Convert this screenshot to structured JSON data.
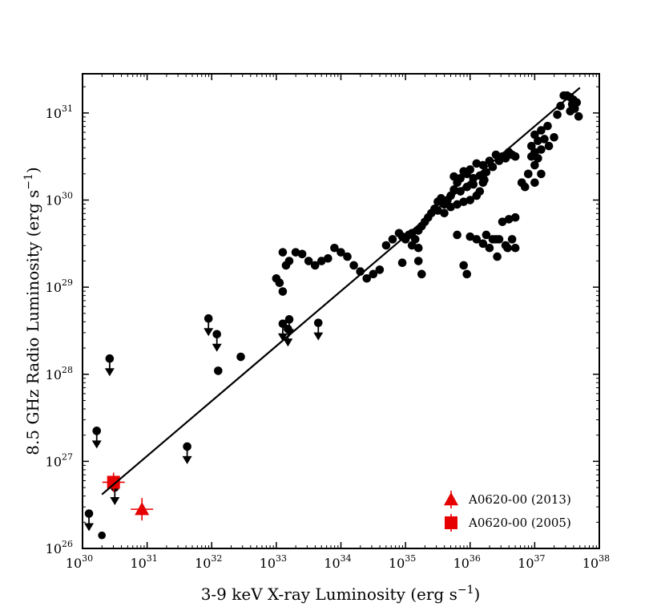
{
  "chart_data": {
    "type": "scatter",
    "xscale": "log",
    "yscale": "log",
    "xlim_exp": [
      30,
      38
    ],
    "ylim_exp": [
      26,
      31.45
    ],
    "xlabel": {
      "main": "3-9 keV X-ray Luminosity (erg s",
      "sup": "−1",
      "close": ")"
    },
    "ylabel": {
      "main": "8.5 GHz Radio Luminosity (erg s",
      "sup": "−1",
      "close": ")"
    },
    "x_ticks": [
      {
        "base": "10",
        "exp": "30",
        "value_exp": 30
      },
      {
        "base": "10",
        "exp": "31",
        "value_exp": 31
      },
      {
        "base": "10",
        "exp": "32",
        "value_exp": 32
      },
      {
        "base": "10",
        "exp": "33",
        "value_exp": 33
      },
      {
        "base": "10",
        "exp": "34",
        "value_exp": 34
      },
      {
        "base": "10",
        "exp": "35",
        "value_exp": 35
      },
      {
        "base": "10",
        "exp": "36",
        "value_exp": 36
      },
      {
        "base": "10",
        "exp": "37",
        "value_exp": 37
      },
      {
        "base": "10",
        "exp": "38",
        "value_exp": 38
      }
    ],
    "y_ticks": [
      {
        "base": "10",
        "exp": "26",
        "value_exp": 26
      },
      {
        "base": "10",
        "exp": "27",
        "value_exp": 27
      },
      {
        "base": "10",
        "exp": "28",
        "value_exp": 28
      },
      {
        "base": "10",
        "exp": "29",
        "value_exp": 29
      },
      {
        "base": "10",
        "exp": "30",
        "value_exp": 30
      },
      {
        "base": "10",
        "exp": "31",
        "value_exp": 31
      }
    ],
    "fit_line": {
      "log_x": [
        30.3,
        37.7
      ],
      "log_y": [
        26.62,
        31.29
      ]
    },
    "series": [
      {
        "name": "detections",
        "marker": "circle",
        "color": "#000000",
        "log_points": [
          [
            37.5,
            31.2
          ],
          [
            37.55,
            31.18
          ],
          [
            37.58,
            31.1
          ],
          [
            37.6,
            31.15
          ],
          [
            37.62,
            31.05
          ],
          [
            37.65,
            31.12
          ],
          [
            37.55,
            31.02
          ],
          [
            37.68,
            30.96
          ],
          [
            37.45,
            31.2
          ],
          [
            37.4,
            31.08
          ],
          [
            37.35,
            30.98
          ],
          [
            37.2,
            30.85
          ],
          [
            37.1,
            30.8
          ],
          [
            37.05,
            30.68
          ],
          [
            37.0,
            30.75
          ],
          [
            36.95,
            30.62
          ],
          [
            37.15,
            30.7
          ],
          [
            37.22,
            30.62
          ],
          [
            37.3,
            30.72
          ],
          [
            37.0,
            30.55
          ],
          [
            36.95,
            30.5
          ],
          [
            37.05,
            30.48
          ],
          [
            37.1,
            30.58
          ],
          [
            37.0,
            30.4
          ],
          [
            37.1,
            30.3
          ],
          [
            36.9,
            30.3
          ],
          [
            36.8,
            30.2
          ],
          [
            36.85,
            30.15
          ],
          [
            36.7,
            30.5
          ],
          [
            36.6,
            30.55
          ],
          [
            36.5,
            30.5
          ],
          [
            36.4,
            30.52
          ],
          [
            36.3,
            30.45
          ],
          [
            36.2,
            30.4
          ],
          [
            36.1,
            30.42
          ],
          [
            36.0,
            30.35
          ],
          [
            35.95,
            30.3
          ],
          [
            35.9,
            30.33
          ],
          [
            36.05,
            30.25
          ],
          [
            36.15,
            30.28
          ],
          [
            36.25,
            30.32
          ],
          [
            36.35,
            30.38
          ],
          [
            36.45,
            30.45
          ],
          [
            36.55,
            30.48
          ],
          [
            36.65,
            30.52
          ],
          [
            35.85,
            30.25
          ],
          [
            35.8,
            30.2
          ],
          [
            35.75,
            30.12
          ],
          [
            35.7,
            30.05
          ],
          [
            35.65,
            30.0
          ],
          [
            35.6,
            29.95
          ],
          [
            35.55,
            30.02
          ],
          [
            35.5,
            29.98
          ],
          [
            35.45,
            29.9
          ],
          [
            35.4,
            29.85
          ],
          [
            35.35,
            29.8
          ],
          [
            35.3,
            29.75
          ],
          [
            35.25,
            29.7
          ],
          [
            35.85,
            30.1
          ],
          [
            35.95,
            30.15
          ],
          [
            36.05,
            30.18
          ],
          [
            36.2,
            30.2
          ],
          [
            36.0,
            30.0
          ],
          [
            36.1,
            30.05
          ],
          [
            35.8,
            29.95
          ],
          [
            35.7,
            29.92
          ],
          [
            35.6,
            29.85
          ],
          [
            35.5,
            29.88
          ],
          [
            35.9,
            29.98
          ],
          [
            35.2,
            29.65
          ],
          [
            35.1,
            29.62
          ],
          [
            35.05,
            29.6
          ],
          [
            35.0,
            29.55
          ],
          [
            34.95,
            29.58
          ],
          [
            34.9,
            29.62
          ],
          [
            34.8,
            29.55
          ],
          [
            34.7,
            29.48
          ],
          [
            35.15,
            29.55
          ],
          [
            35.2,
            29.45
          ],
          [
            35.1,
            29.48
          ],
          [
            34.6,
            29.2
          ],
          [
            34.5,
            29.15
          ],
          [
            34.4,
            29.1
          ],
          [
            34.3,
            29.18
          ],
          [
            34.2,
            29.25
          ],
          [
            34.1,
            29.35
          ],
          [
            34.0,
            29.4
          ],
          [
            33.9,
            29.45
          ],
          [
            33.8,
            29.33
          ],
          [
            33.7,
            29.3
          ],
          [
            33.6,
            29.25
          ],
          [
            33.5,
            29.3
          ],
          [
            33.4,
            29.38
          ],
          [
            33.3,
            29.4
          ],
          [
            33.2,
            29.3
          ],
          [
            33.15,
            29.25
          ],
          [
            33.1,
            29.4
          ],
          [
            33.05,
            29.05
          ],
          [
            33.1,
            28.95
          ],
          [
            33.0,
            29.1
          ],
          [
            36.8,
            30.2
          ],
          [
            36.7,
            29.8
          ],
          [
            36.6,
            29.78
          ],
          [
            36.5,
            29.75
          ],
          [
            36.4,
            29.55
          ],
          [
            36.3,
            29.45
          ],
          [
            36.35,
            29.55
          ],
          [
            36.45,
            29.55
          ],
          [
            36.55,
            29.48
          ],
          [
            36.65,
            29.55
          ],
          [
            36.7,
            29.45
          ],
          [
            36.25,
            29.6
          ],
          [
            36.2,
            29.5
          ],
          [
            36.1,
            29.55
          ],
          [
            35.9,
            29.25
          ],
          [
            35.95,
            29.15
          ],
          [
            35.8,
            29.6
          ],
          [
            36.0,
            29.58
          ],
          [
            36.9,
            30.3
          ],
          [
            37.0,
            30.2
          ],
          [
            32.45,
            28.2
          ],
          [
            32.1,
            28.04
          ],
          [
            36.58,
            29.45
          ],
          [
            36.42,
            29.35
          ],
          [
            34.95,
            29.28
          ],
          [
            35.2,
            29.3
          ],
          [
            35.25,
            29.15
          ],
          [
            35.75,
            30.27
          ],
          [
            36.22,
            30.23
          ],
          [
            36.15,
            30.1
          ]
        ]
      },
      {
        "name": "upper_limits",
        "marker": "circle-arrow",
        "color": "#000000",
        "log_points": [
          [
            30.1,
            26.4
          ],
          [
            30.22,
            27.35
          ],
          [
            30.42,
            28.18
          ],
          [
            30.5,
            26.7
          ],
          [
            31.62,
            27.17
          ],
          [
            31.95,
            28.64
          ],
          [
            32.08,
            28.46
          ],
          [
            33.1,
            28.58
          ],
          [
            33.18,
            28.52
          ],
          [
            33.2,
            28.63
          ],
          [
            33.65,
            28.59
          ]
        ]
      },
      {
        "name": "A0620-00 (2013)",
        "marker": "triangle",
        "color": "#e60000",
        "log_points": [
          [
            30.92,
            26.45
          ]
        ]
      },
      {
        "name": "A0620-00 (2005)",
        "marker": "square",
        "color": "#e60000",
        "log_points": [
          [
            30.48,
            26.76
          ]
        ]
      }
    ],
    "extra_dots_log": [
      [
        30.3,
        26.15
      ]
    ],
    "legend": {
      "position": "bottom-right",
      "entries": [
        {
          "label": "A0620-00 (2013)",
          "marker": "triangle",
          "color": "#e60000"
        },
        {
          "label": "A0620-00 (2005)",
          "marker": "square",
          "color": "#e60000"
        }
      ]
    }
  }
}
